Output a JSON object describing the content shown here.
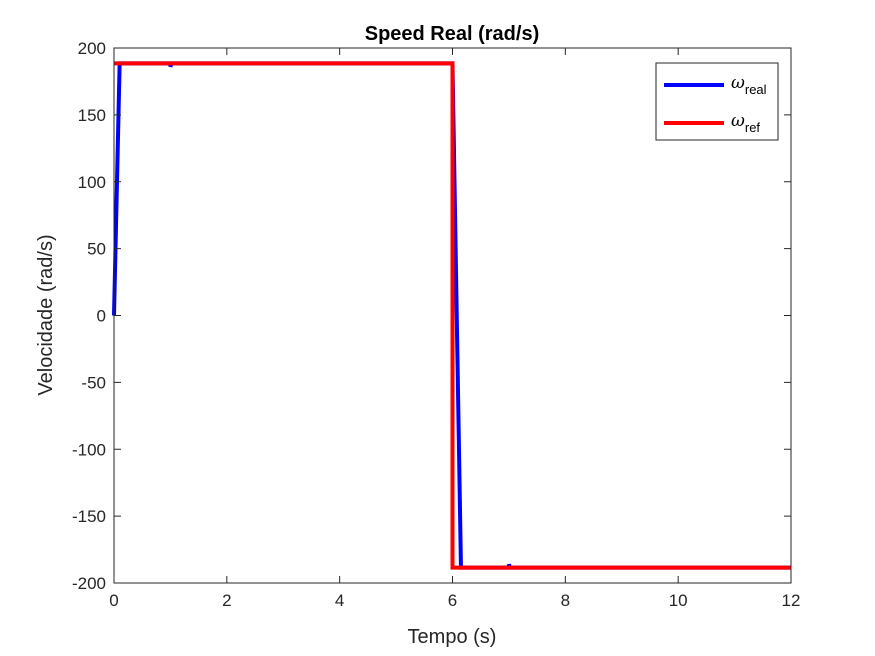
{
  "chart_data": {
    "type": "line",
    "title": "Speed Real (rad/s)",
    "xlabel": "Tempo (s)",
    "ylabel": "Velocidade (rad/s)",
    "xlim": [
      0,
      12
    ],
    "ylim": [
      -200,
      200
    ],
    "xticks": [
      0,
      2,
      4,
      6,
      8,
      10,
      12
    ],
    "yticks": [
      -200,
      -150,
      -100,
      -50,
      0,
      50,
      100,
      150,
      200
    ],
    "grid": false,
    "legend_position": "top-right",
    "series": [
      {
        "name": "ω_real",
        "name_symbol": "ω",
        "name_sub": "real",
        "color": "#0000ff",
        "x": [
          0,
          0.1,
          1.0,
          1.0,
          1.02,
          6.0,
          6.15,
          7.0,
          7.0,
          7.02,
          12
        ],
        "y": [
          0,
          188.5,
          188.5,
          186,
          188.5,
          188.5,
          -188.5,
          -188.5,
          -186,
          -188.5,
          -188.5
        ]
      },
      {
        "name": "ω_ref",
        "name_symbol": "ω",
        "name_sub": "ref",
        "color": "#ff0000",
        "x": [
          0,
          6.0,
          6.0,
          12
        ],
        "y": [
          188.5,
          188.5,
          -188.5,
          -188.5
        ]
      }
    ]
  }
}
